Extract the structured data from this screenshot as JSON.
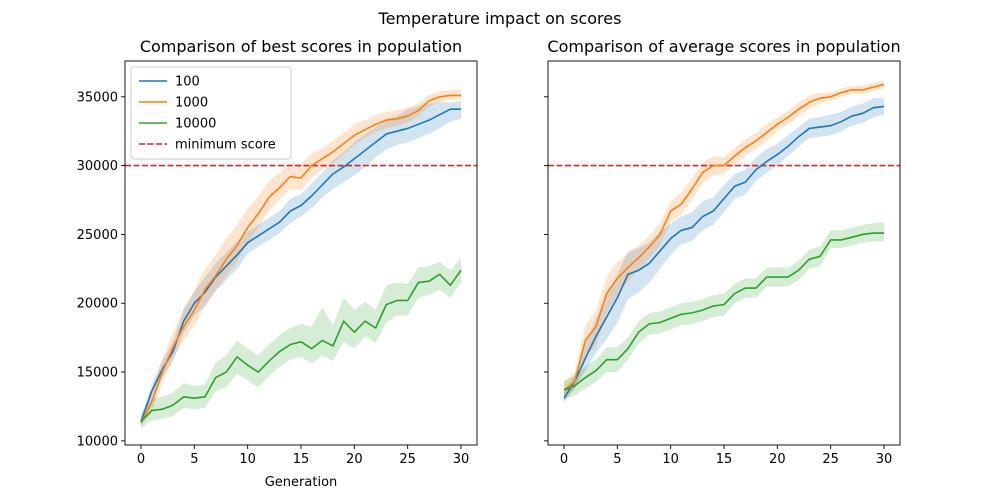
{
  "figure": {
    "suptitle": "Temperature impact on scores"
  },
  "chart_data": [
    {
      "type": "line",
      "title": "Comparison of best scores in population",
      "xlabel": "Generation",
      "ylabel": "",
      "xlim": [
        -1.5,
        31.5
      ],
      "ylim": [
        9700,
        37600
      ],
      "xticks": [
        0,
        5,
        10,
        15,
        20,
        25,
        30
      ],
      "yticks": [
        10000,
        15000,
        20000,
        25000,
        30000,
        35000
      ],
      "legend": "top-left",
      "hline": {
        "name": "minimum score",
        "value": 30000,
        "color": "#d62728",
        "style": "dashed"
      },
      "x": [
        0,
        1,
        2,
        3,
        4,
        5,
        6,
        7,
        8,
        9,
        10,
        11,
        12,
        13,
        14,
        15,
        16,
        17,
        18,
        19,
        20,
        21,
        22,
        23,
        24,
        25,
        26,
        27,
        28,
        29,
        30
      ],
      "series": [
        {
          "name": "100",
          "color": "#1f77b4",
          "values": [
            11400,
            13600,
            15200,
            16500,
            18700,
            20000,
            20800,
            21900,
            22700,
            23500,
            24400,
            24900,
            25400,
            25900,
            26700,
            27100,
            27800,
            28600,
            29400,
            29900,
            30500,
            31100,
            31700,
            32300,
            32500,
            32700,
            33000,
            33300,
            33700,
            34100,
            34100
          ],
          "lower": [
            11200,
            13100,
            14600,
            15800,
            17800,
            19100,
            19800,
            20900,
            21700,
            22500,
            23600,
            24100,
            24600,
            25100,
            25800,
            26300,
            26900,
            27700,
            28300,
            28800,
            29300,
            29900,
            30600,
            31200,
            31500,
            31700,
            32000,
            32300,
            32700,
            33200,
            33400
          ],
          "upper": [
            11700,
            14100,
            15800,
            17200,
            19600,
            20900,
            21900,
            22900,
            23700,
            24500,
            25200,
            25700,
            26200,
            26700,
            27600,
            27900,
            28700,
            29500,
            30400,
            31000,
            31700,
            32300,
            32800,
            33400,
            33600,
            34100,
            34300,
            34500,
            34600,
            34600,
            34700
          ]
        },
        {
          "name": "1000",
          "color": "#ff7f0e",
          "values": [
            11300,
            12800,
            15000,
            16800,
            18300,
            19500,
            21000,
            22000,
            23200,
            24200,
            25500,
            26500,
            27700,
            28400,
            29200,
            29100,
            30000,
            30500,
            31000,
            31600,
            32200,
            32600,
            33000,
            33300,
            33400,
            33600,
            34000,
            34700,
            35000,
            35100,
            35100
          ],
          "lower": [
            11100,
            12100,
            14200,
            15900,
            17300,
            18400,
            19800,
            20900,
            22000,
            23000,
            24400,
            25500,
            26700,
            27500,
            28300,
            28200,
            29100,
            29700,
            30200,
            30800,
            31500,
            32000,
            32400,
            32700,
            32900,
            33100,
            33600,
            34300,
            34600,
            34800,
            34800
          ],
          "upper": [
            11600,
            13700,
            16000,
            17900,
            19500,
            20900,
            22500,
            23500,
            24700,
            25700,
            26900,
            27800,
            28900,
            29500,
            30200,
            30100,
            30900,
            31300,
            31800,
            32400,
            33000,
            33300,
            33700,
            33900,
            34000,
            34200,
            34500,
            35100,
            35400,
            35500,
            35500
          ]
        },
        {
          "name": "10000",
          "color": "#2ca02c",
          "values": [
            11400,
            12200,
            12300,
            12600,
            13200,
            13100,
            13200,
            14600,
            15000,
            16100,
            15500,
            15000,
            15800,
            16500,
            17000,
            17200,
            16700,
            17300,
            16900,
            18700,
            17900,
            18700,
            18200,
            19900,
            20200,
            20200,
            21500,
            21600,
            22100,
            21300,
            22400
          ],
          "lower": [
            10900,
            11500,
            11600,
            11800,
            12400,
            12300,
            12400,
            13600,
            13900,
            14900,
            14400,
            13900,
            14700,
            15400,
            15900,
            16100,
            15600,
            16200,
            15800,
            17200,
            16700,
            17600,
            17100,
            18600,
            19100,
            19100,
            20400,
            20600,
            21000,
            20400,
            21500
          ],
          "upper": [
            12000,
            13100,
            13200,
            13500,
            14200,
            14000,
            14100,
            15700,
            16200,
            17300,
            16700,
            16200,
            17000,
            17700,
            18200,
            18500,
            18300,
            19700,
            18400,
            20400,
            19500,
            20100,
            19500,
            21300,
            21500,
            21400,
            22600,
            22700,
            23000,
            22400,
            23300
          ]
        }
      ]
    },
    {
      "type": "line",
      "title": "Comparison of average scores in population",
      "xlabel": "",
      "ylabel": "",
      "xlim": [
        -1.5,
        31.5
      ],
      "ylim": [
        9700,
        37600
      ],
      "xticks": [
        0,
        5,
        10,
        15,
        20,
        25,
        30
      ],
      "yticks": [
        10000,
        15000,
        20000,
        25000,
        30000,
        35000
      ],
      "hline": {
        "name": "minimum score",
        "value": 30000,
        "color": "#d62728",
        "style": "dashed"
      },
      "x": [
        0,
        1,
        2,
        3,
        4,
        5,
        6,
        7,
        8,
        9,
        10,
        11,
        12,
        13,
        14,
        15,
        16,
        17,
        18,
        19,
        20,
        21,
        22,
        23,
        24,
        25,
        26,
        27,
        28,
        29,
        30
      ],
      "series": [
        {
          "name": "100",
          "color": "#1f77b4",
          "values": [
            13100,
            14300,
            16000,
            17600,
            19000,
            20400,
            22100,
            22400,
            22900,
            23800,
            24700,
            25300,
            25500,
            26300,
            26700,
            27600,
            28500,
            28800,
            29700,
            30300,
            30800,
            31400,
            32100,
            32700,
            32800,
            32900,
            33200,
            33600,
            33800,
            34200,
            34300
          ],
          "lower": [
            12800,
            13800,
            15100,
            16400,
            17400,
            18600,
            20300,
            20800,
            21500,
            22500,
            23500,
            24300,
            24500,
            25300,
            25700,
            26600,
            27600,
            27900,
            28900,
            29500,
            30000,
            30700,
            31400,
            32000,
            32100,
            32200,
            32500,
            32900,
            33100,
            33500,
            33700
          ],
          "upper": [
            13500,
            14800,
            17000,
            18900,
            20600,
            22100,
            23800,
            24000,
            24400,
            25200,
            25800,
            26300,
            26600,
            27400,
            27700,
            28600,
            29400,
            29700,
            30600,
            31200,
            31600,
            32200,
            32800,
            33400,
            33500,
            33700,
            33900,
            34300,
            34500,
            34900,
            34900
          ]
        },
        {
          "name": "1000",
          "color": "#ff7f0e",
          "values": [
            13700,
            14300,
            17300,
            18300,
            20700,
            21800,
            22600,
            23300,
            24100,
            25000,
            26700,
            27200,
            28300,
            29500,
            30000,
            30000,
            30700,
            31300,
            31800,
            32400,
            33000,
            33500,
            34100,
            34600,
            34900,
            35000,
            35300,
            35500,
            35500,
            35700,
            35900
          ],
          "lower": [
            13200,
            13700,
            16200,
            16900,
            19300,
            20600,
            21600,
            22400,
            23300,
            24200,
            25900,
            26400,
            27500,
            28700,
            29300,
            29400,
            30100,
            30700,
            31200,
            31800,
            32500,
            33000,
            33600,
            34100,
            34500,
            34700,
            35000,
            35200,
            35200,
            35400,
            35600
          ],
          "upper": [
            14200,
            15000,
            18400,
            19500,
            22000,
            23000,
            23600,
            24200,
            24900,
            25800,
            27400,
            28000,
            29100,
            30200,
            30700,
            30600,
            31300,
            31900,
            32400,
            33000,
            33500,
            34000,
            34600,
            35100,
            35300,
            35300,
            35600,
            35800,
            35800,
            36000,
            36200
          ]
        },
        {
          "name": "10000",
          "color": "#2ca02c",
          "values": [
            13700,
            14000,
            14600,
            15100,
            15900,
            15900,
            16700,
            17900,
            18500,
            18600,
            18900,
            19200,
            19300,
            19500,
            19800,
            19900,
            20700,
            21100,
            21100,
            21900,
            21900,
            21900,
            22400,
            23200,
            23400,
            24600,
            24600,
            24800,
            25000,
            25100,
            25100
          ],
          "lower": [
            13000,
            13300,
            13800,
            14300,
            15000,
            15000,
            15900,
            17100,
            17700,
            17800,
            18100,
            18400,
            18500,
            18700,
            19000,
            19100,
            20000,
            20400,
            20400,
            21200,
            21200,
            21200,
            21700,
            22500,
            22700,
            24000,
            24000,
            24200,
            24400,
            24500,
            24500
          ],
          "upper": [
            14400,
            14700,
            15400,
            15900,
            16800,
            16800,
            17500,
            18700,
            19300,
            19400,
            19700,
            20000,
            20100,
            20300,
            20600,
            20700,
            21400,
            21800,
            21800,
            22600,
            22600,
            22600,
            23100,
            23900,
            24100,
            25300,
            25300,
            25500,
            25700,
            25800,
            25900
          ]
        }
      ]
    }
  ]
}
